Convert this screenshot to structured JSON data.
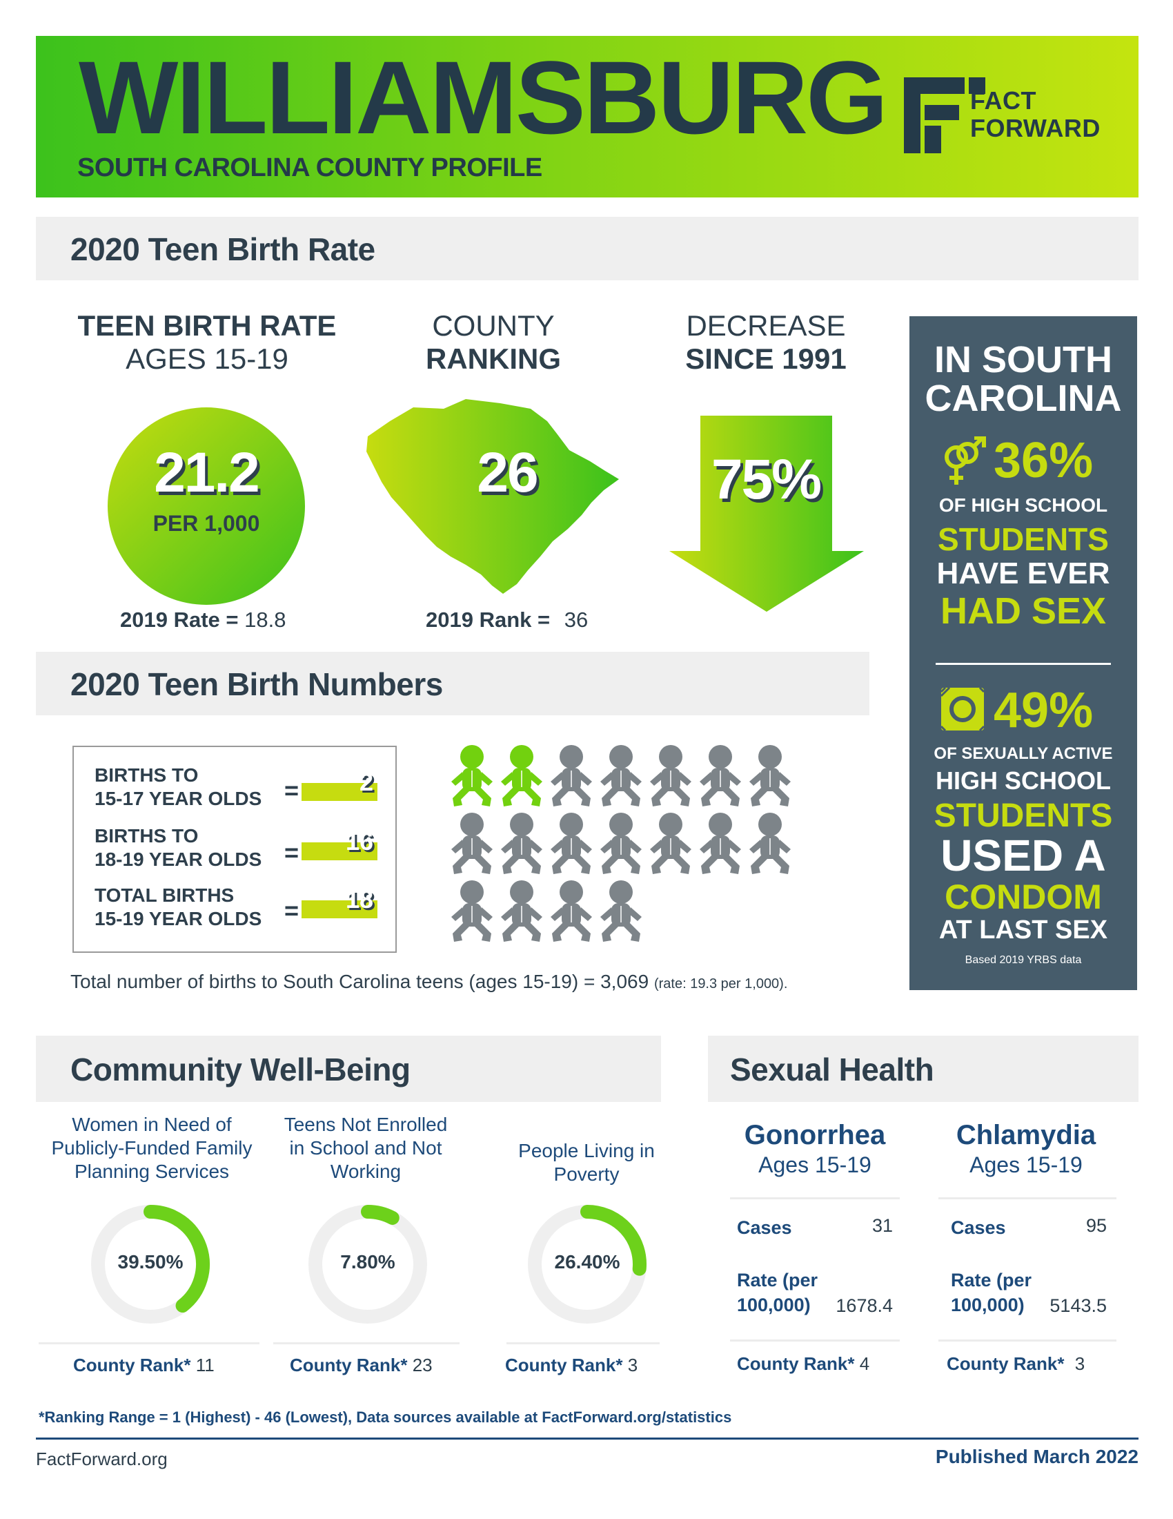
{
  "header": {
    "title": "WILLIAMSBURG",
    "subtitle": "SOUTH CAROLINA COUNTY PROFILE",
    "logo_line1": "FACT",
    "logo_line2": "FORWARD"
  },
  "teen_birth_rate": {
    "section_title": "2020 Teen Birth Rate",
    "rate": {
      "heading_line1": "TEEN BIRTH RATE",
      "heading_line2": "AGES 15-19",
      "value": "21.2",
      "unit": "PER 1,000",
      "prior_label": "2019 Rate =",
      "prior_value": "18.8"
    },
    "ranking": {
      "heading_line1": "COUNTY",
      "heading_line2": "RANKING",
      "value": "26",
      "prior_label": "2019 Rank =",
      "prior_value": "36"
    },
    "decrease": {
      "heading_line1": "DECREASE",
      "heading_line2": "SINCE 1991",
      "value": "75%"
    }
  },
  "sc_panel": {
    "line1": "IN SOUTH",
    "line2": "CAROLINA",
    "stat1_value": "36%",
    "stat1_l1": "OF HIGH SCHOOL",
    "stat1_l2": "STUDENTS",
    "stat1_l3": "HAVE EVER",
    "stat1_l4": "HAD SEX",
    "stat2_value": "49%",
    "stat2_l1": "OF SEXUALLY ACTIVE",
    "stat2_l2": "HIGH SCHOOL",
    "stat2_l3": "STUDENTS",
    "stat2_l4": "USED A",
    "stat2_l5": "CONDOM",
    "stat2_l6": "AT LAST SEX",
    "source": "Based 2019 YRBS data"
  },
  "teen_birth_numbers": {
    "section_title": "2020 Teen Birth Numbers",
    "rows": [
      {
        "label_line1": "BIRTHS TO",
        "label_line2": "15-17 YEAR OLDS",
        "eq": "=",
        "value": "2"
      },
      {
        "label_line1": "BIRTHS TO",
        "label_line2": "18-19 YEAR OLDS",
        "eq": "=",
        "value": "16"
      },
      {
        "label_line1": "TOTAL BIRTHS",
        "label_line2": "15-19 YEAR OLDS",
        "eq": "=",
        "value": "18"
      }
    ],
    "highlighted_babies": 2,
    "total_babies": 18,
    "note_main": "Total number of births to South Carolina teens (ages 15-19) = 3,069",
    "note_small": "(rate: 19.3 per 1,000)."
  },
  "community": {
    "section_title": "Community Well-Being",
    "items": [
      {
        "head": [
          "Women in Need of",
          "Publicly-Funded Family",
          "Planning Services"
        ],
        "value": "39.50%",
        "fraction": 0.395,
        "rank_label": "County Rank*",
        "rank_value": "11"
      },
      {
        "head": [
          "Teens Not Enrolled",
          "in School and Not",
          "Working"
        ],
        "value": "7.80%",
        "fraction": 0.078,
        "rank_label": "County Rank*",
        "rank_value": "23"
      },
      {
        "head": [
          "People Living in",
          "Poverty"
        ],
        "value": "26.40%",
        "fraction": 0.264,
        "rank_label": "County Rank*",
        "rank_value": "3"
      }
    ]
  },
  "sexual_health": {
    "section_title": "Sexual Health",
    "items": [
      {
        "name": "Gonorrhea",
        "ages": "Ages 15-19",
        "cases_label": "Cases",
        "cases": "31",
        "rate_label1": "Rate (per",
        "rate_label2": "100,000)",
        "rate": "1678.4",
        "rank_label": "County Rank*",
        "rank_value": "4"
      },
      {
        "name": "Chlamydia",
        "ages": "Ages 15-19",
        "cases_label": "Cases",
        "cases": "95",
        "rate_label1": "Rate (per",
        "rate_label2": "100,000)",
        "rate": "5143.5",
        "rank_label": "County Rank*",
        "rank_value": "3"
      }
    ]
  },
  "footer": {
    "ranking_note": "*Ranking Range = 1 (Highest) - 46 (Lowest), Data sources available at FactForward.org/statistics",
    "site": "FactForward.org",
    "published": "Published March 2022"
  },
  "colors": {
    "accent_green": "#c6dc10",
    "bright_green": "#3cc21c",
    "dark_text": "#243a49",
    "navy": "#1d4a7a",
    "panel": "#465c6b",
    "baby_gray": "#7d8489"
  }
}
